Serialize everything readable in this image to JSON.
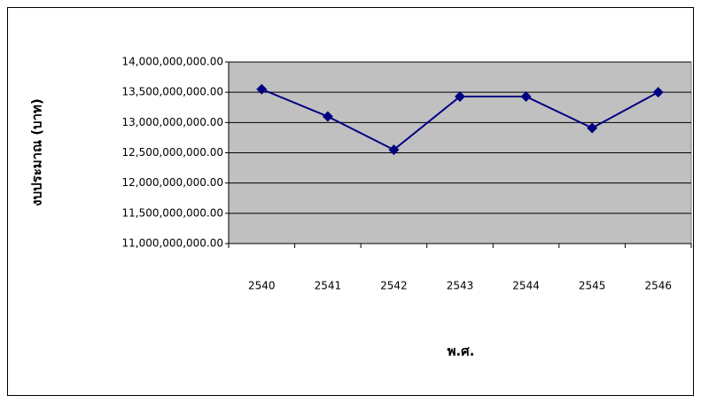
{
  "chart_data": {
    "type": "line",
    "x_label": "พ.ศ.",
    "y_label": "งบประมาณ (บาท)",
    "categories": [
      "2540",
      "2541",
      "2542",
      "2543",
      "2544",
      "2545",
      "2546"
    ],
    "values": [
      13550000000,
      13100000000,
      12550000000,
      13430000000,
      13430000000,
      12910000000,
      13500000000
    ],
    "color": "#000080",
    "plot_background": "#c0c0c0",
    "ylim": [
      11000000000,
      14000000000
    ],
    "yticks": [
      {
        "value": 11000000000,
        "label": "11,000,000,000.00"
      },
      {
        "value": 11500000000,
        "label": "11,500,000,000.00"
      },
      {
        "value": 12000000000,
        "label": "12,000,000,000.00"
      },
      {
        "value": 12500000000,
        "label": "12,500,000,000.00"
      },
      {
        "value": 13000000000,
        "label": "13,000,000,000.00"
      },
      {
        "value": 13500000000,
        "label": "13,500,000,000.00"
      },
      {
        "value": 14000000000,
        "label": "14,000,000,000.00"
      }
    ],
    "grid": true
  }
}
